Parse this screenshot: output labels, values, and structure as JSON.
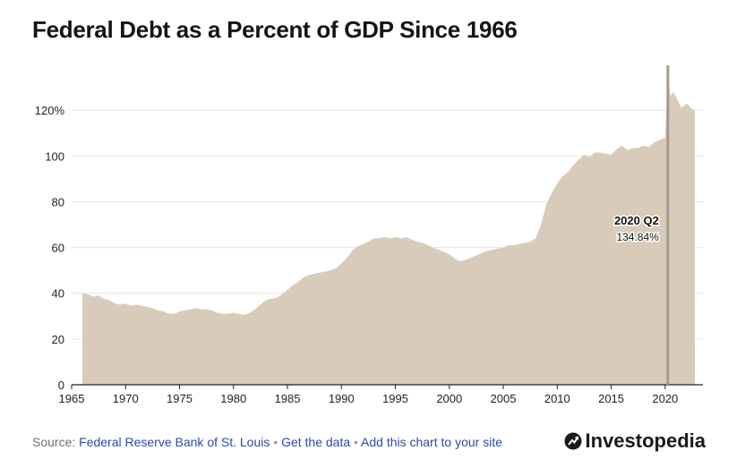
{
  "title": "Federal Debt as a Percent of GDP Since 1966",
  "footer": {
    "source_prefix": "Source: ",
    "source_link": "Federal Reserve Bank of St. Louis",
    "separator": "•",
    "get_data": "Get the data",
    "add_chart": "Add this chart to your site"
  },
  "brand": {
    "name": "Investopedia",
    "icon": "investopedia-logo-icon"
  },
  "colors": {
    "area": "#d8cbb9",
    "marker": "#a59a8c",
    "grid": "#e6e6e6",
    "axis": "#222222"
  },
  "chart_data": {
    "type": "area",
    "title": "Federal Debt as a Percent of GDP Since 1966",
    "xlabel": "",
    "ylabel": "",
    "xlim": [
      1965,
      2023.5
    ],
    "ylim": [
      0,
      140
    ],
    "x_ticks": [
      1965,
      1970,
      1975,
      1980,
      1985,
      1990,
      1995,
      2000,
      2005,
      2010,
      2015,
      2020
    ],
    "y_ticks": [
      0,
      20,
      40,
      60,
      80,
      100,
      120
    ],
    "y_tick_labels": [
      "0",
      "20",
      "40",
      "60",
      "80",
      "100",
      "120%"
    ],
    "grid": "horizontal",
    "x": [
      1966.0,
      1966.5,
      1967.0,
      1967.5,
      1968.0,
      1968.5,
      1969.0,
      1969.5,
      1970.0,
      1970.5,
      1971.0,
      1971.5,
      1972.0,
      1972.5,
      1973.0,
      1973.5,
      1974.0,
      1974.5,
      1975.0,
      1975.5,
      1976.0,
      1976.5,
      1977.0,
      1977.5,
      1978.0,
      1978.5,
      1979.0,
      1979.5,
      1980.0,
      1980.5,
      1981.0,
      1981.5,
      1982.0,
      1982.5,
      1983.0,
      1983.5,
      1984.0,
      1984.5,
      1985.0,
      1985.5,
      1986.0,
      1986.5,
      1987.0,
      1987.5,
      1988.0,
      1988.5,
      1989.0,
      1989.5,
      1990.0,
      1990.5,
      1991.0,
      1991.5,
      1992.0,
      1992.5,
      1993.0,
      1993.5,
      1994.0,
      1994.5,
      1995.0,
      1995.5,
      1996.0,
      1996.5,
      1997.0,
      1997.5,
      1998.0,
      1998.5,
      1999.0,
      1999.5,
      2000.0,
      2000.5,
      2001.0,
      2001.5,
      2002.0,
      2002.5,
      2003.0,
      2003.5,
      2004.0,
      2004.5,
      2005.0,
      2005.5,
      2006.0,
      2006.5,
      2007.0,
      2007.5,
      2008.0,
      2008.5,
      2009.0,
      2009.5,
      2010.0,
      2010.5,
      2011.0,
      2011.5,
      2012.0,
      2012.5,
      2013.0,
      2013.5,
      2014.0,
      2014.5,
      2015.0,
      2015.5,
      2016.0,
      2016.5,
      2017.0,
      2017.5,
      2018.0,
      2018.5,
      2019.0,
      2019.5,
      2020.0,
      2020.25,
      2020.5,
      2020.75,
      2021.0,
      2021.5,
      2022.0,
      2022.5,
      2022.75
    ],
    "y": [
      40.0,
      39.5,
      38.5,
      39.0,
      37.5,
      37.0,
      35.5,
      35.0,
      35.5,
      34.5,
      35.0,
      34.5,
      34.0,
      33.5,
      32.5,
      32.0,
      31.0,
      31.0,
      32.0,
      32.5,
      33.0,
      33.5,
      33.0,
      33.0,
      32.5,
      31.5,
      31.0,
      31.0,
      31.5,
      31.0,
      30.5,
      31.5,
      33.0,
      35.0,
      37.0,
      37.5,
      38.0,
      39.5,
      41.5,
      43.5,
      45.0,
      47.0,
      48.0,
      48.5,
      49.0,
      49.5,
      50.0,
      51.0,
      53.0,
      55.5,
      58.5,
      60.5,
      61.5,
      62.5,
      64.0,
      64.0,
      64.5,
      64.0,
      64.5,
      64.0,
      64.5,
      63.5,
      62.5,
      62.0,
      61.0,
      60.0,
      59.0,
      58.0,
      57.0,
      55.0,
      54.0,
      54.5,
      55.5,
      56.5,
      57.5,
      58.5,
      59.0,
      59.5,
      60.0,
      61.0,
      61.0,
      61.5,
      62.0,
      62.5,
      64.0,
      70.0,
      79.0,
      84.0,
      88.0,
      91.0,
      93.0,
      96.0,
      98.5,
      100.5,
      99.5,
      101.5,
      101.5,
      101.0,
      100.5,
      103.0,
      104.5,
      102.5,
      103.5,
      103.5,
      104.5,
      104.0,
      106.0,
      107.0,
      108.0,
      134.84,
      126.0,
      128.0,
      126.0,
      121.0,
      123.0,
      120.5,
      120.0
    ],
    "annotation": {
      "x": 2020.25,
      "label": "2020 Q2",
      "value_label": "134.84%"
    }
  }
}
